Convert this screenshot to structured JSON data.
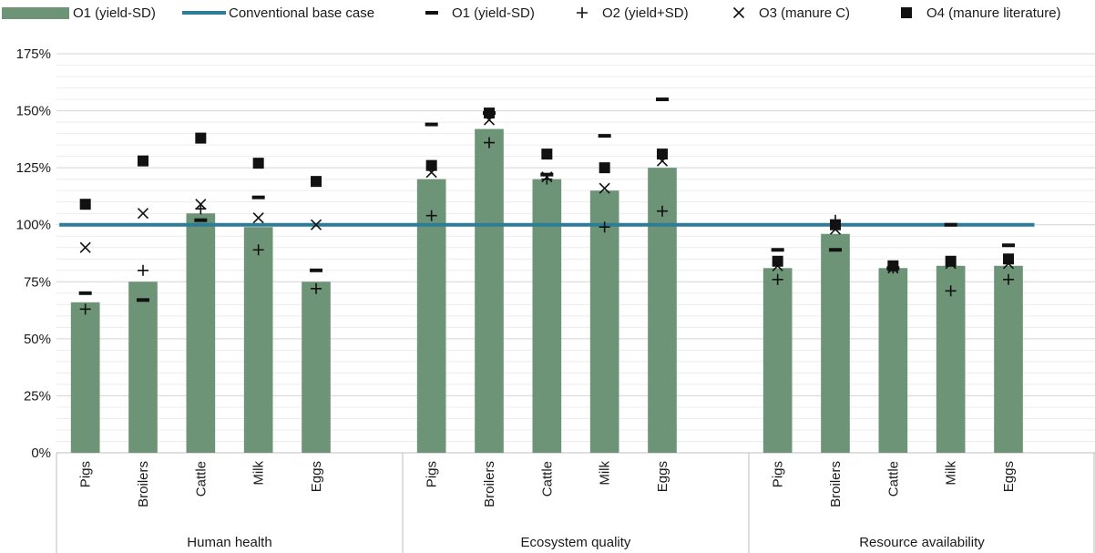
{
  "chart_data": {
    "type": "bar",
    "title": "",
    "xlabel": "",
    "ylabel": "",
    "ylim": [
      0,
      175
    ],
    "yticks": [
      0,
      25,
      50,
      75,
      100,
      125,
      150,
      175
    ],
    "ytick_labels": [
      "0%",
      "25%",
      "50%",
      "75%",
      "100%",
      "125%",
      "150%",
      "175%"
    ],
    "minor_grid_step": 5,
    "grid": true,
    "legend_position": "top",
    "colors": {
      "bar": "#6e9478",
      "baseline": "#2e7d96",
      "marker": "#111111"
    },
    "groups": [
      {
        "name": "Human health",
        "categories": [
          "Pigs",
          "Broilers",
          "Cattle",
          "Milk",
          "Eggs"
        ]
      },
      {
        "name": "Ecosystem quality",
        "categories": [
          "Pigs",
          "Broilers",
          "Cattle",
          "Milk",
          "Eggs"
        ]
      },
      {
        "name": "Resource availability",
        "categories": [
          "Pigs",
          "Broilers",
          "Cattle",
          "Milk",
          "Eggs"
        ]
      }
    ],
    "legend": [
      {
        "label": "O1 (yield-SD)",
        "kind": "bar"
      },
      {
        "label": "Conventional base case",
        "kind": "line"
      },
      {
        "label": "O1 (yield-SD)",
        "kind": "dash"
      },
      {
        "label": "O2 (yield+SD)",
        "kind": "plus"
      },
      {
        "label": "O3 (manure C)",
        "kind": "cross"
      },
      {
        "label": "O4 (manure literature)",
        "kind": "square"
      }
    ],
    "series": [
      {
        "name": "O1 (yield-SD)",
        "kind": "bar",
        "values": [
          66,
          75,
          105,
          99,
          75,
          120,
          142,
          120,
          115,
          125,
          81,
          96,
          81,
          82,
          82
        ]
      },
      {
        "name": "Conventional base case",
        "kind": "line",
        "value": 100
      },
      {
        "name": "O1 (yield-SD)",
        "kind": "dash",
        "values": [
          70,
          67,
          102,
          112,
          80,
          144,
          149,
          122,
          139,
          155,
          89,
          89,
          81,
          100,
          91
        ]
      },
      {
        "name": "O2 (yield+SD)",
        "kind": "plus",
        "values": [
          63,
          80,
          107,
          89,
          72,
          104,
          136,
          120,
          99,
          106,
          76,
          102,
          81,
          71,
          76
        ]
      },
      {
        "name": "O3 (manure C)",
        "kind": "cross",
        "values": [
          90,
          105,
          109,
          103,
          100,
          123,
          146,
          121,
          116,
          128,
          82,
          98,
          81,
          83,
          83
        ]
      },
      {
        "name": "O4 (manure literature)",
        "kind": "square",
        "values": [
          109,
          128,
          138,
          127,
          119,
          126,
          149,
          131,
          125,
          131,
          84,
          100,
          82,
          84,
          85
        ]
      }
    ]
  }
}
